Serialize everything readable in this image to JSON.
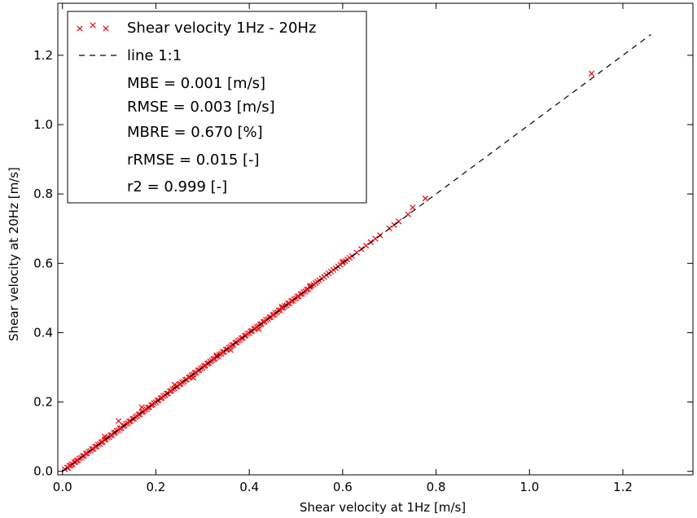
{
  "chart_data": {
    "type": "scatter",
    "title": "",
    "xlabel": "Shear velocity at 1Hz [m/s]",
    "ylabel": "Shear velocity at 20Hz [m/s]",
    "xlim": [
      -0.01,
      1.35
    ],
    "ylim": [
      -0.01,
      1.35
    ],
    "x_ticks": [
      0.0,
      0.2,
      0.4,
      0.6,
      0.8,
      1.0,
      1.2
    ],
    "y_ticks": [
      0.0,
      0.2,
      0.4,
      0.6,
      0.8,
      1.0,
      1.2
    ],
    "x_tick_labels": [
      "0.0",
      "0.2",
      "0.4",
      "0.6",
      "0.8",
      "1.0",
      "1.2"
    ],
    "y_tick_labels": [
      "0.0",
      "0.2",
      "0.4",
      "0.6",
      "0.8",
      "1.0",
      "1.2"
    ],
    "grid": false,
    "legend_position": "top-left",
    "series": [
      {
        "name": "Shear velocity 1Hz - 20Hz",
        "marker": "x",
        "color": "#e8121b",
        "x": [
          0.005,
          0.01,
          0.012,
          0.015,
          0.018,
          0.02,
          0.022,
          0.025,
          0.028,
          0.03,
          0.033,
          0.036,
          0.04,
          0.043,
          0.046,
          0.05,
          0.053,
          0.056,
          0.06,
          0.063,
          0.066,
          0.07,
          0.073,
          0.076,
          0.08,
          0.083,
          0.086,
          0.09,
          0.093,
          0.096,
          0.1,
          0.103,
          0.106,
          0.11,
          0.113,
          0.116,
          0.12,
          0.123,
          0.126,
          0.13,
          0.133,
          0.136,
          0.14,
          0.143,
          0.146,
          0.15,
          0.153,
          0.156,
          0.16,
          0.163,
          0.166,
          0.17,
          0.173,
          0.176,
          0.18,
          0.183,
          0.186,
          0.19,
          0.193,
          0.196,
          0.2,
          0.203,
          0.206,
          0.21,
          0.213,
          0.216,
          0.22,
          0.223,
          0.226,
          0.23,
          0.233,
          0.236,
          0.24,
          0.243,
          0.246,
          0.25,
          0.253,
          0.256,
          0.26,
          0.263,
          0.266,
          0.27,
          0.273,
          0.276,
          0.28,
          0.283,
          0.286,
          0.29,
          0.293,
          0.296,
          0.3,
          0.303,
          0.306,
          0.31,
          0.313,
          0.316,
          0.32,
          0.323,
          0.326,
          0.33,
          0.333,
          0.336,
          0.34,
          0.343,
          0.346,
          0.35,
          0.353,
          0.356,
          0.36,
          0.363,
          0.366,
          0.37,
          0.373,
          0.376,
          0.38,
          0.383,
          0.386,
          0.39,
          0.393,
          0.396,
          0.4,
          0.403,
          0.406,
          0.41,
          0.413,
          0.416,
          0.42,
          0.423,
          0.426,
          0.43,
          0.433,
          0.436,
          0.44,
          0.443,
          0.446,
          0.45,
          0.453,
          0.456,
          0.46,
          0.463,
          0.466,
          0.47,
          0.473,
          0.476,
          0.48,
          0.483,
          0.486,
          0.49,
          0.493,
          0.496,
          0.5,
          0.503,
          0.506,
          0.51,
          0.513,
          0.516,
          0.52,
          0.523,
          0.526,
          0.53,
          0.534,
          0.538,
          0.542,
          0.546,
          0.55,
          0.555,
          0.56,
          0.565,
          0.57,
          0.575,
          0.58,
          0.585,
          0.59,
          0.595,
          0.6,
          0.605,
          0.61,
          0.615,
          0.62,
          0.63,
          0.64,
          0.65,
          0.66,
          0.67,
          0.68,
          0.7,
          0.71,
          0.72,
          0.74,
          0.75,
          0.777,
          1.133,
          0.12,
          0.17,
          0.33,
          0.36,
          0.28,
          0.42,
          0.24,
          0.09,
          0.47,
          0.53,
          0.6
        ],
        "y": [
          0.006,
          0.011,
          0.01,
          0.016,
          0.017,
          0.021,
          0.02,
          0.026,
          0.027,
          0.031,
          0.032,
          0.037,
          0.039,
          0.044,
          0.045,
          0.051,
          0.052,
          0.057,
          0.059,
          0.064,
          0.065,
          0.071,
          0.072,
          0.077,
          0.079,
          0.084,
          0.085,
          0.091,
          0.092,
          0.097,
          0.099,
          0.104,
          0.105,
          0.111,
          0.112,
          0.117,
          0.119,
          0.124,
          0.125,
          0.131,
          0.132,
          0.137,
          0.139,
          0.144,
          0.145,
          0.151,
          0.152,
          0.157,
          0.159,
          0.164,
          0.165,
          0.171,
          0.172,
          0.177,
          0.179,
          0.184,
          0.185,
          0.191,
          0.192,
          0.197,
          0.199,
          0.204,
          0.205,
          0.211,
          0.212,
          0.217,
          0.219,
          0.224,
          0.225,
          0.231,
          0.232,
          0.237,
          0.239,
          0.244,
          0.245,
          0.251,
          0.252,
          0.257,
          0.259,
          0.264,
          0.265,
          0.271,
          0.272,
          0.277,
          0.279,
          0.284,
          0.285,
          0.291,
          0.292,
          0.297,
          0.299,
          0.304,
          0.305,
          0.311,
          0.312,
          0.317,
          0.319,
          0.324,
          0.325,
          0.331,
          0.332,
          0.337,
          0.339,
          0.344,
          0.345,
          0.351,
          0.352,
          0.357,
          0.359,
          0.364,
          0.365,
          0.371,
          0.372,
          0.377,
          0.379,
          0.384,
          0.385,
          0.391,
          0.392,
          0.397,
          0.399,
          0.404,
          0.405,
          0.411,
          0.412,
          0.417,
          0.419,
          0.424,
          0.425,
          0.431,
          0.432,
          0.437,
          0.439,
          0.444,
          0.445,
          0.451,
          0.452,
          0.457,
          0.459,
          0.464,
          0.465,
          0.471,
          0.472,
          0.477,
          0.479,
          0.484,
          0.485,
          0.491,
          0.492,
          0.497,
          0.499,
          0.504,
          0.505,
          0.511,
          0.512,
          0.517,
          0.519,
          0.524,
          0.525,
          0.531,
          0.535,
          0.539,
          0.543,
          0.547,
          0.551,
          0.556,
          0.561,
          0.566,
          0.571,
          0.576,
          0.581,
          0.586,
          0.591,
          0.596,
          0.601,
          0.606,
          0.611,
          0.616,
          0.621,
          0.631,
          0.641,
          0.651,
          0.661,
          0.671,
          0.681,
          0.701,
          0.711,
          0.721,
          0.741,
          0.761,
          0.787,
          1.147,
          0.145,
          0.185,
          0.335,
          0.35,
          0.27,
          0.41,
          0.25,
          0.1,
          0.475,
          0.535,
          0.605
        ]
      },
      {
        "name": "line 1:1",
        "style": "dashed",
        "color": "#000000",
        "x": [
          0.0,
          1.26
        ],
        "y": [
          0.0,
          1.26
        ]
      }
    ],
    "legend_entries": [
      "Shear velocity 1Hz - 20Hz",
      "line 1:1",
      "MBE = 0.001 [m/s]",
      "RMSE = 0.003 [m/s]",
      "MBRE = 0.670 [%]",
      "rRMSE = 0.015 [-]",
      "r2 = 0.999 [-]"
    ]
  }
}
